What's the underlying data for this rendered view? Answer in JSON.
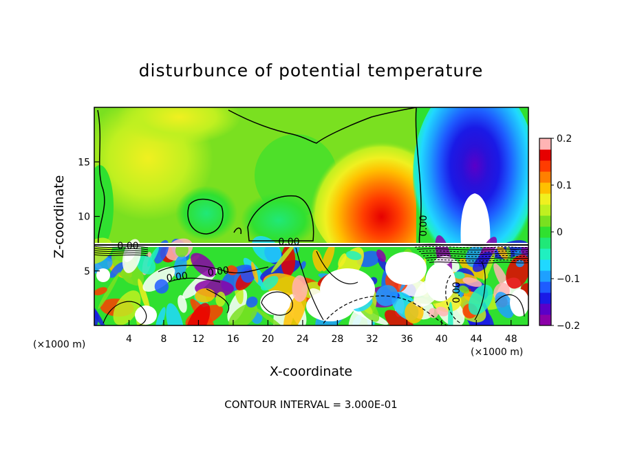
{
  "chart_data": {
    "type": "heatmap",
    "title": "disturbunce of potential temperature",
    "xlabel": "X-coordinate",
    "ylabel": "Z-coordinate",
    "x_unit": "(×1000 m)",
    "z_unit": "(×1000 m)",
    "xlim": [
      0,
      50
    ],
    "ylim": [
      0,
      20
    ],
    "x_ticks": [
      4,
      8,
      12,
      16,
      20,
      24,
      28,
      32,
      36,
      40,
      44,
      48
    ],
    "x_tick_labels": [
      "4",
      "8",
      "12",
      "16",
      "20",
      "24",
      "28",
      "32",
      "36",
      "40",
      "44",
      "48"
    ],
    "y_ticks": [
      5,
      10,
      15
    ],
    "y_tick_labels": [
      "5",
      "10",
      "15"
    ],
    "colorbar": {
      "range": [
        -0.2,
        0.2
      ],
      "ticks": [
        0.2,
        0.1,
        0,
        -0.1,
        -0.2
      ],
      "tick_labels": [
        "0.2",
        "0.1",
        "0",
        "−0.1",
        "−0.2"
      ],
      "colors": [
        "#8b00a8",
        "#5a00c8",
        "#1a1ae6",
        "#1e5cff",
        "#1ea0ff",
        "#20d8ff",
        "#20f0c0",
        "#20e878",
        "#30e030",
        "#7ae020",
        "#c0f020",
        "#f0f020",
        "#ffc000",
        "#ff8000",
        "#ff3c00",
        "#e60000",
        "#ffb4b4"
      ]
    },
    "contour_labels": [
      "0.00",
      "0.00",
      "0.00",
      "0.00",
      "0.00",
      "0.00"
    ],
    "contour_interval_text": "CONTOUR INTERVAL = 3.000E-01"
  }
}
